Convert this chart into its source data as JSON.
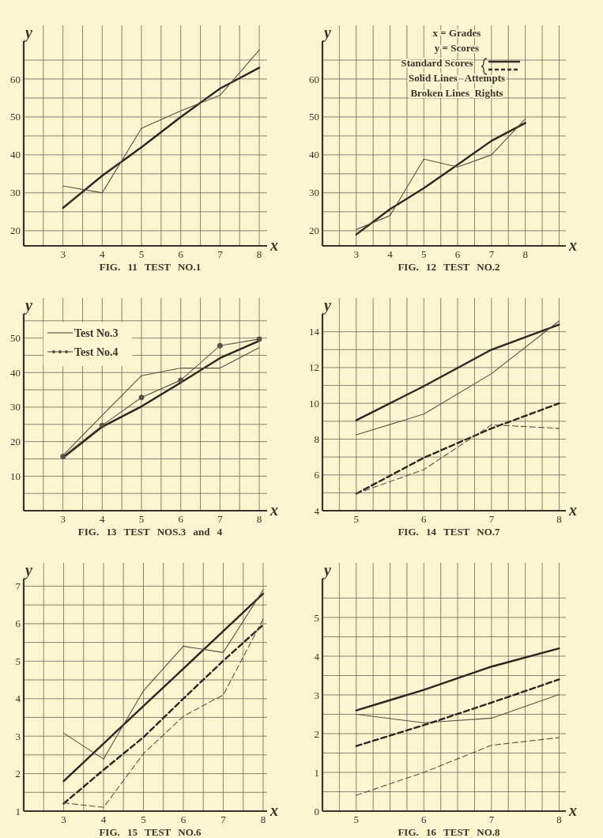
{
  "chart_data": [
    {
      "type": "line",
      "title": "FIG. 11 TEST NO.1",
      "xlabel": "x",
      "ylabel": "y",
      "xlim": [
        2,
        8.2
      ],
      "ylim": [
        16,
        70
      ],
      "xticks": [
        {
          "value": 2.5,
          "label": null
        },
        3,
        {
          "value": 3.5,
          "label": null
        },
        4,
        {
          "value": 4.5,
          "label": null
        },
        5,
        {
          "value": 5.5,
          "label": null
        },
        6,
        {
          "value": 6.5,
          "label": null
        },
        7,
        {
          "value": 7.5,
          "label": null
        },
        8
      ],
      "yticks": [
        20,
        {
          "value": 25,
          "label": null
        },
        30,
        {
          "value": 35,
          "label": null
        },
        40,
        {
          "value": 45,
          "label": null
        },
        50,
        {
          "value": 55,
          "label": null
        },
        60,
        {
          "value": 65,
          "label": null
        }
      ],
      "grid": true,
      "x": [
        3,
        4,
        5,
        6,
        7,
        8
      ],
      "series": [
        {
          "color": "#2b2520",
          "line_style": "solid",
          "values": [
            26,
            34.5,
            42,
            50,
            57.5,
            63
          ]
        },
        {
          "color": "#5a5046",
          "line_style": "solid",
          "values": [
            31.8,
            30,
            47,
            51.6,
            55.7,
            67.7
          ]
        }
      ]
    },
    {
      "type": "line",
      "title": "FIG. 12 TEST NO.2",
      "xlabel": "x",
      "ylabel": "y",
      "xlim": [
        2,
        9.2
      ],
      "ylim": [
        16,
        70
      ],
      "xticks": [
        {
          "value": 2.5,
          "label": null
        },
        3,
        {
          "value": 3.5,
          "label": null
        },
        4,
        {
          "value": 4.5,
          "label": null
        },
        5,
        {
          "value": 5.5,
          "label": null
        },
        6,
        {
          "value": 6.5,
          "label": null
        },
        7,
        {
          "value": 7.5,
          "label": null
        },
        8,
        {
          "value": 8.5,
          "label": null
        },
        {
          "value": 9,
          "label": null
        }
      ],
      "yticks": [
        20,
        {
          "value": 25,
          "label": null
        },
        30,
        {
          "value": 35,
          "label": null
        },
        40,
        {
          "value": 45,
          "label": null
        },
        50,
        {
          "value": 55,
          "label": null
        },
        60,
        {
          "value": 65,
          "label": null
        }
      ],
      "grid": true,
      "x": [
        3,
        4,
        5,
        6,
        7,
        8
      ],
      "annotations": [
        "x = Grades",
        "y = Scores",
        "Standard Scores",
        "Solid Lines   Attempts",
        "Broken Lines  Rights"
      ],
      "series": [
        {
          "color": "#2b2520",
          "line_style": "solid",
          "values": [
            19,
            25.7,
            31.2,
            37.4,
            43.7,
            48.4
          ]
        },
        {
          "color": "#5a5046",
          "line_style": "solid",
          "values": [
            20.3,
            24,
            38.9,
            36.8,
            40,
            49.5
          ]
        }
      ]
    },
    {
      "type": "line",
      "title": "FIG. 13 TEST NOS.3 and 4",
      "xlabel": "x",
      "ylabel": "y",
      "xlim": [
        2,
        8.2
      ],
      "ylim": [
        0,
        57
      ],
      "xticks": [
        {
          "value": 2.5,
          "label": null
        },
        3,
        {
          "value": 3.5,
          "label": null
        },
        4,
        {
          "value": 4.5,
          "label": null
        },
        5,
        {
          "value": 5.5,
          "label": null
        },
        6,
        {
          "value": 6.5,
          "label": null
        },
        7,
        {
          "value": 7.5,
          "label": null
        },
        8
      ],
      "yticks": [
        {
          "value": 5,
          "label": null
        },
        10,
        {
          "value": 15,
          "label": null
        },
        20,
        {
          "value": 25,
          "label": null
        },
        30,
        {
          "value": 35,
          "label": null
        },
        40,
        {
          "value": 45,
          "label": null
        },
        50,
        {
          "value": 55,
          "label": null
        }
      ],
      "grid": true,
      "legend": "top left",
      "x": [
        3,
        4,
        5,
        6,
        7,
        8
      ],
      "series": [
        {
          "color": "#2b2520",
          "line_style": "solid",
          "values": [
            15.3,
            24.3,
            30.2,
            37.1,
            44.2,
            49.2
          ]
        },
        {
          "name": "Test No.3",
          "color": "#5a5046",
          "line_style": "solid",
          "values": [
            16,
            27.6,
            39.1,
            41.3,
            41.3,
            47.2
          ]
        },
        {
          "name": "Test No.4",
          "color": "#5a5046",
          "line_style": "solid",
          "marker": "circle",
          "values": [
            15.7,
            24.7,
            32.8,
            37.8,
            47.8,
            49.7
          ]
        }
      ]
    },
    {
      "type": "line",
      "title": "FIG. 14 TEST NO.7",
      "xlabel": "x",
      "ylabel": "y",
      "xlim": [
        4.5,
        8.1
      ],
      "ylim": [
        4,
        15
      ],
      "xticks": [
        {
          "value": 4.75,
          "label": null
        },
        5,
        {
          "value": 5.25,
          "label": null
        },
        {
          "value": 5.5,
          "label": null
        },
        {
          "value": 5.75,
          "label": null
        },
        6,
        {
          "value": 6.25,
          "label": null
        },
        {
          "value": 6.5,
          "label": null
        },
        {
          "value": 6.75,
          "label": null
        },
        7,
        {
          "value": 7.25,
          "label": null
        },
        {
          "value": 7.5,
          "label": null
        },
        {
          "value": 7.75,
          "label": null
        },
        8
      ],
      "yticks": [
        4,
        {
          "value": 5,
          "label": null
        },
        6,
        {
          "value": 7,
          "label": null
        },
        8,
        {
          "value": 9,
          "label": null
        },
        10,
        {
          "value": 11,
          "label": null
        },
        12,
        {
          "value": 13,
          "label": null
        },
        14
      ],
      "grid": true,
      "x": [
        5,
        6,
        7,
        8
      ],
      "series": [
        {
          "color": "#2b2520",
          "line_style": "solid",
          "values": [
            9.05,
            10.96,
            13,
            14.4
          ]
        },
        {
          "color": "#5a5046",
          "line_style": "solid",
          "values": [
            8.24,
            9.4,
            11.66,
            14.6
          ]
        },
        {
          "color": "#2b2520",
          "line_style": "dashed",
          "values": [
            4.95,
            6.96,
            8.6,
            10
          ]
        },
        {
          "color": "#5a5046",
          "line_style": "dashed",
          "values": [
            4.95,
            6.3,
            8.8,
            8.6
          ]
        }
      ]
    },
    {
      "type": "line",
      "title": "FIG. 15 TEST NO.6",
      "xlabel": "x",
      "ylabel": "y",
      "xlim": [
        2,
        8.1
      ],
      "ylim": [
        1,
        7.2
      ],
      "xticks": [
        {
          "value": 2.5,
          "label": null
        },
        3,
        {
          "value": 3.5,
          "label": null
        },
        4,
        {
          "value": 4.5,
          "label": null
        },
        5,
        {
          "value": 5.5,
          "label": null
        },
        6,
        {
          "value": 6.5,
          "label": null
        },
        7,
        {
          "value": 7.5,
          "label": null
        },
        8
      ],
      "yticks": [
        1,
        {
          "value": 1.5,
          "label": null
        },
        2,
        {
          "value": 2.5,
          "label": null
        },
        3,
        {
          "value": 3.5,
          "label": null
        },
        4,
        {
          "value": 4.5,
          "label": null
        },
        5,
        {
          "value": 5.5,
          "label": null
        },
        6,
        {
          "value": 6.5,
          "label": null
        },
        7
      ],
      "grid": true,
      "x": [
        3,
        4,
        5,
        6,
        7,
        8
      ],
      "series": [
        {
          "color": "#2b2520",
          "line_style": "solid",
          "values": [
            1.8,
            2.8,
            3.8,
            4.8,
            5.8,
            6.8
          ]
        },
        {
          "color": "#5a5046",
          "line_style": "solid",
          "values": [
            3.08,
            2.39,
            4.21,
            5.4,
            5.23,
            6.9
          ]
        },
        {
          "color": "#2b2520",
          "line_style": "dashed",
          "values": [
            1.2,
            2.1,
            2.97,
            4,
            5.01,
            5.97
          ]
        },
        {
          "color": "#5a5046",
          "line_style": "dashed",
          "values": [
            1.22,
            1.1,
            2.53,
            3.53,
            4.1,
            6.12
          ]
        }
      ]
    },
    {
      "type": "line",
      "title": "FIG. 16 TEST NO.8",
      "xlabel": "x",
      "ylabel": "y",
      "xlim": [
        4.5,
        8.1
      ],
      "ylim": [
        0,
        6
      ],
      "xticks": [
        {
          "value": 4.75,
          "label": null
        },
        5,
        {
          "value": 5.25,
          "label": null
        },
        {
          "value": 5.5,
          "label": null
        },
        {
          "value": 5.75,
          "label": null
        },
        6,
        {
          "value": 6.25,
          "label": null
        },
        {
          "value": 6.5,
          "label": null
        },
        {
          "value": 6.75,
          "label": null
        },
        7,
        {
          "value": 7.25,
          "label": null
        },
        {
          "value": 7.5,
          "label": null
        },
        {
          "value": 7.75,
          "label": null
        },
        8
      ],
      "yticks": [
        0,
        {
          "value": 0.5,
          "label": null
        },
        1,
        {
          "value": 1.5,
          "label": null
        },
        2,
        {
          "value": 2.5,
          "label": null
        },
        3,
        {
          "value": 3.5,
          "label": null
        },
        4,
        {
          "value": 4.5,
          "label": null
        },
        5,
        {
          "value": 5.5,
          "label": null
        }
      ],
      "grid": true,
      "x": [
        5,
        6,
        7,
        8
      ],
      "series": [
        {
          "color": "#2b2520",
          "line_style": "solid",
          "values": [
            2.6,
            3.13,
            3.73,
            4.2
          ]
        },
        {
          "color": "#5a5046",
          "line_style": "solid",
          "values": [
            2.5,
            2.28,
            2.4,
            3.01
          ]
        },
        {
          "color": "#2b2520",
          "line_style": "dashed",
          "values": [
            1.68,
            2.22,
            2.8,
            3.4
          ]
        },
        {
          "color": "#5a5046",
          "line_style": "dashed",
          "values": [
            0.41,
            1,
            1.7,
            1.9
          ]
        }
      ]
    }
  ]
}
